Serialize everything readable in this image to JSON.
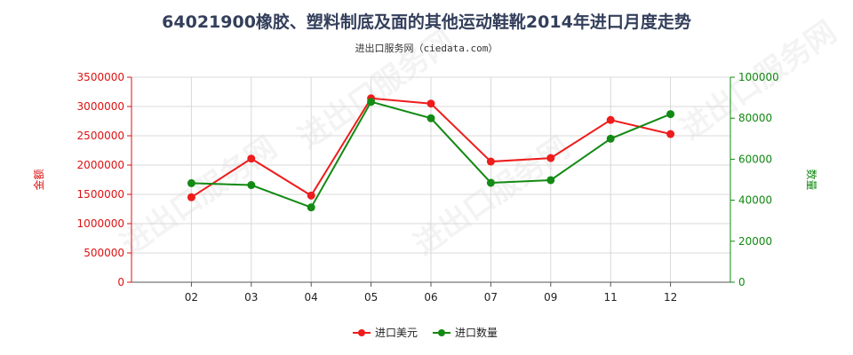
{
  "chart_data": {
    "type": "line",
    "title": "64021900橡胶、塑料制底及面的其他运动鞋靴2014年进口月度走势",
    "subtitle": "进出口服务网（ciedata.com）",
    "watermark": "进出口服务网",
    "categories": [
      "02",
      "03",
      "04",
      "05",
      "06",
      "07",
      "09",
      "11",
      "12"
    ],
    "y_left": {
      "label": "金额",
      "ylim": [
        0,
        3500000
      ],
      "ticks": [
        "0",
        "500000",
        "1000000",
        "1500000",
        "2000000",
        "2500000",
        "3000000",
        "3500000"
      ],
      "color": "#dd1111"
    },
    "y_right": {
      "label": "数量",
      "ylim": [
        0,
        100000
      ],
      "ticks": [
        "0",
        "20000",
        "40000",
        "60000",
        "80000",
        "100000"
      ],
      "color": "#118811"
    },
    "series": [
      {
        "name": "进口美元",
        "axis": "left",
        "color": "#ee1c1c",
        "values": [
          1450000,
          2110000,
          1480000,
          3140000,
          3050000,
          2060000,
          2120000,
          2770000,
          2530000
        ]
      },
      {
        "name": "进口数量",
        "axis": "right",
        "color": "#138a13",
        "values": [
          48300,
          47400,
          36500,
          88000,
          80000,
          48500,
          49800,
          70000,
          82000
        ]
      }
    ],
    "grid": true,
    "legend_position": "bottom-center"
  }
}
